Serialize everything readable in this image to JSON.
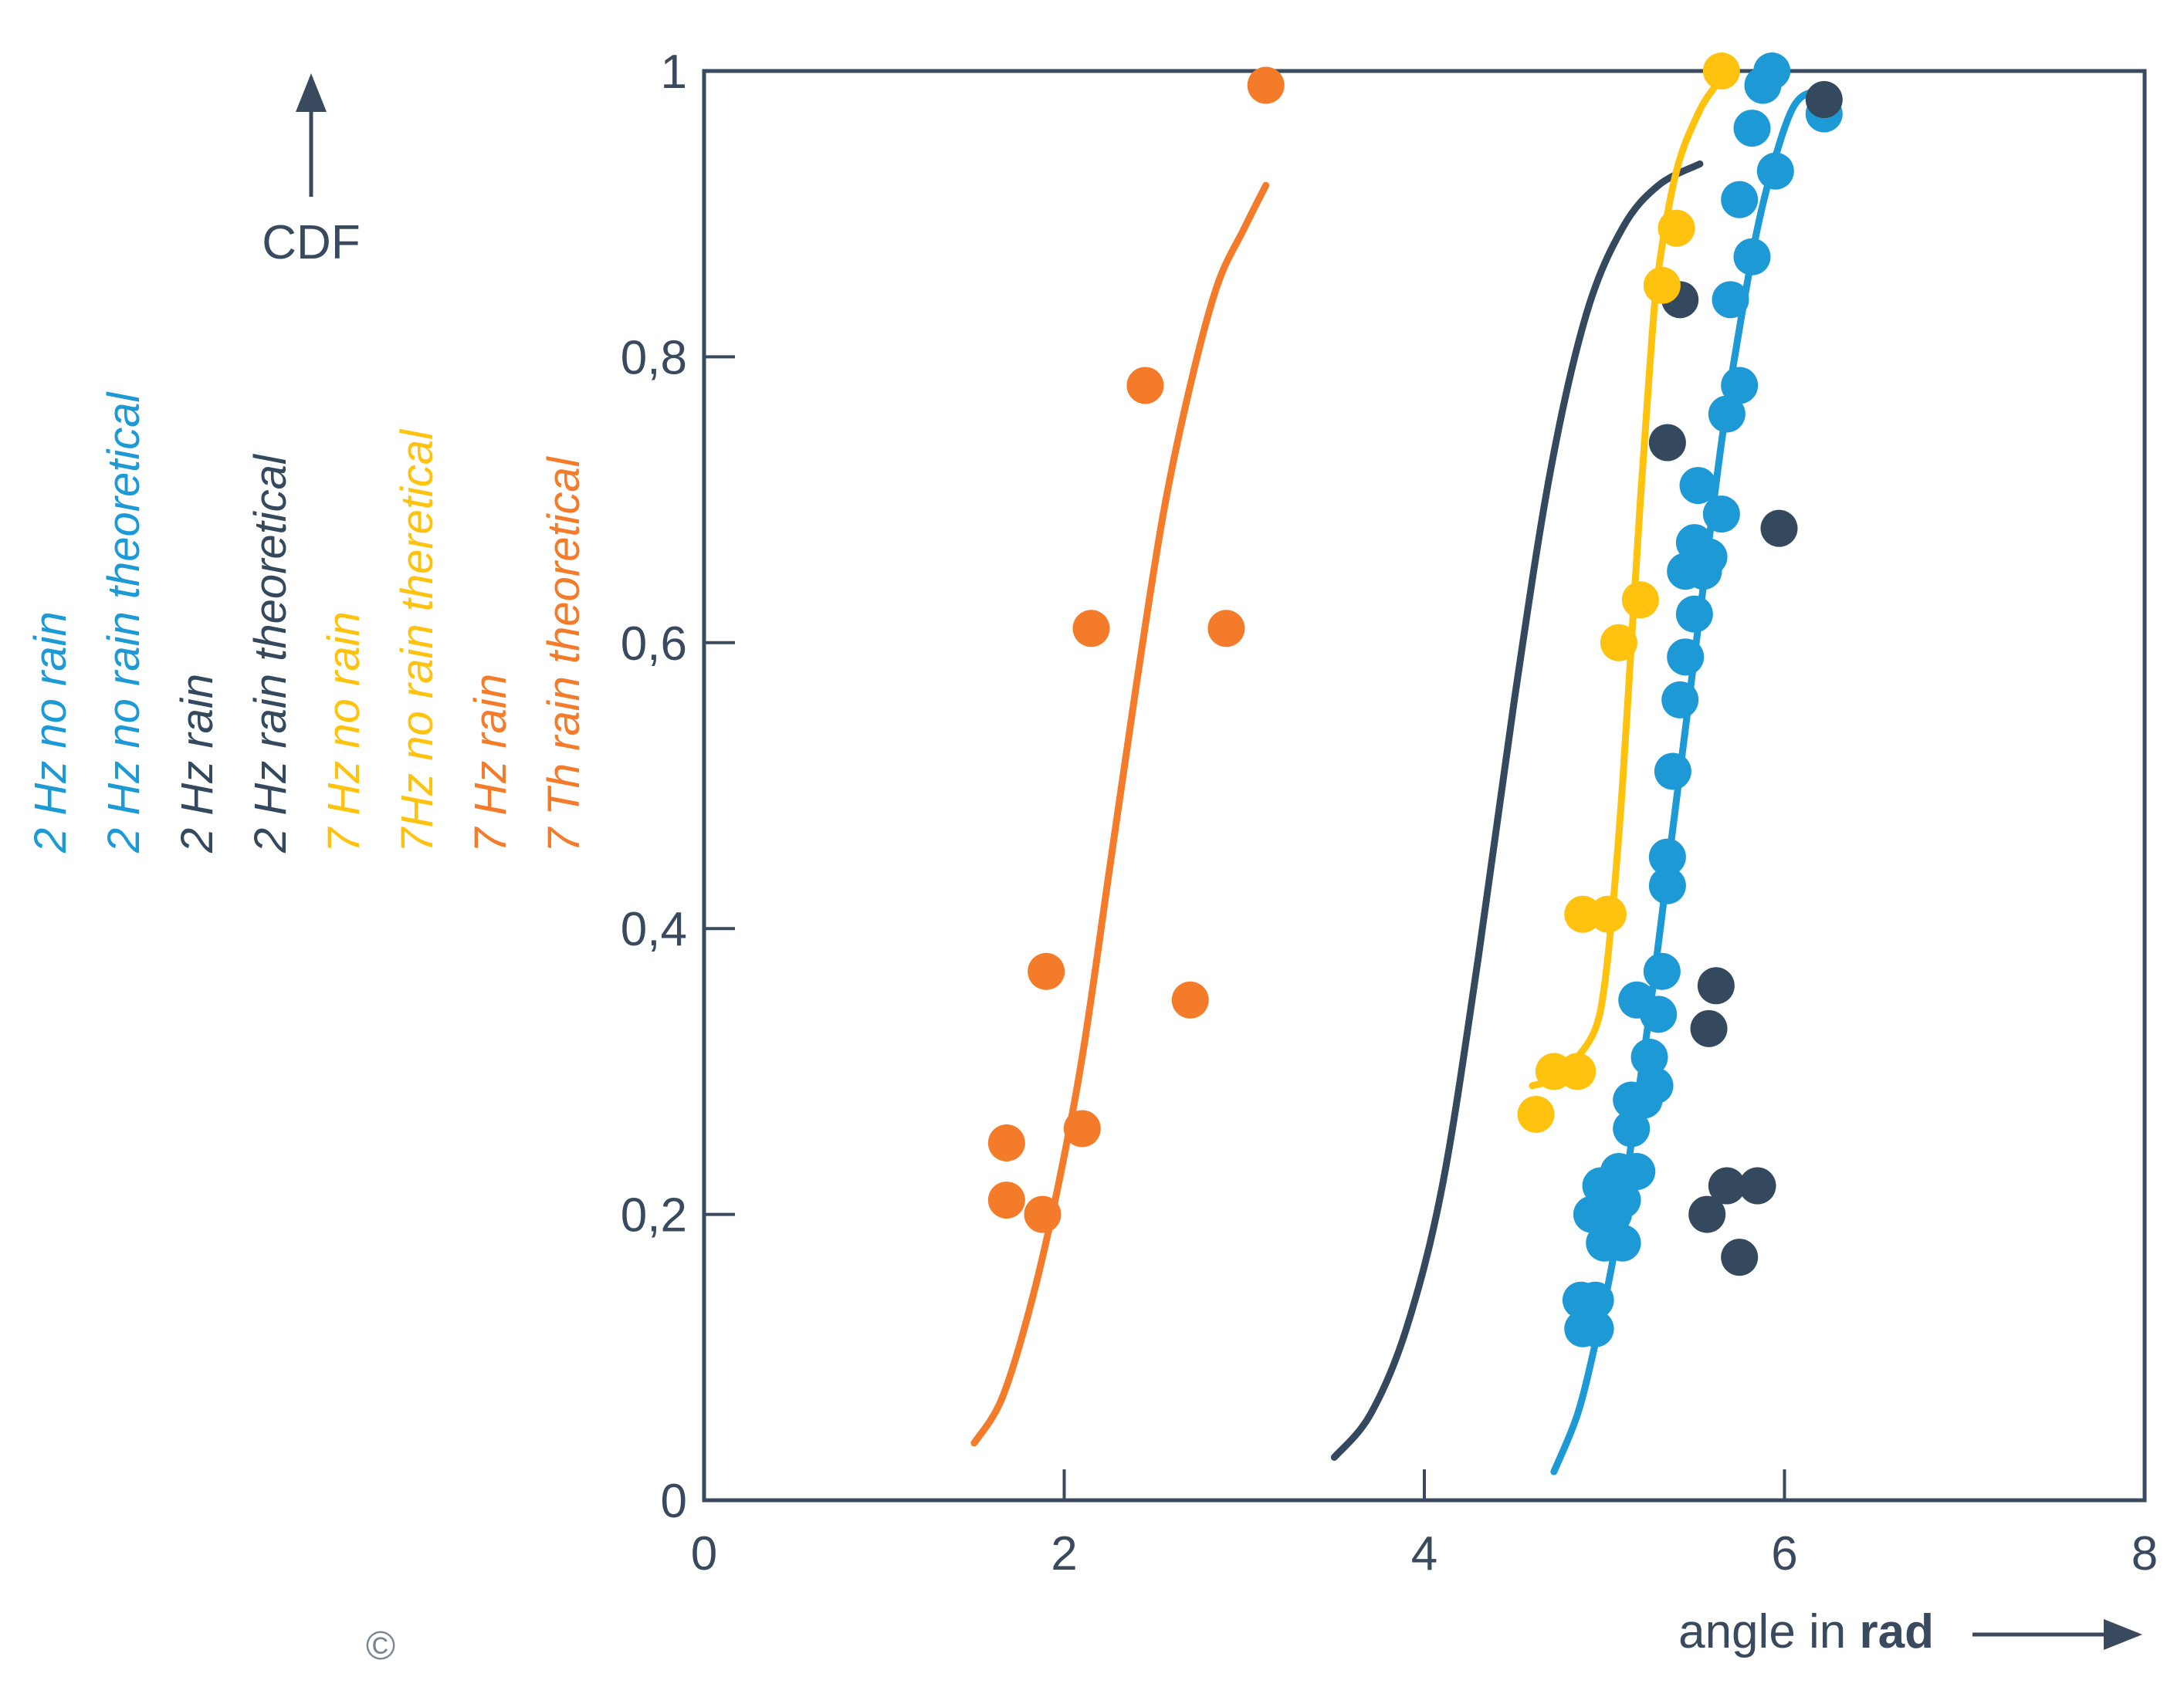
{
  "chart_data": {
    "type": "scatter",
    "title": "",
    "xlabel_prefix": "angle in ",
    "xlabel_bold": "rad",
    "ylabel": "CDF",
    "xlim": [
      0,
      8
    ],
    "ylim": [
      0,
      1
    ],
    "x_ticks": [
      0,
      2,
      4,
      6,
      8
    ],
    "x_tick_labels": [
      "0",
      "2",
      "4",
      "6",
      "8"
    ],
    "y_ticks": [
      0,
      0.2,
      0.4,
      0.6,
      0.8,
      1
    ],
    "y_tick_labels": [
      "0",
      "0,2",
      "0,4",
      "0,6",
      "0,8",
      "1"
    ],
    "grid": false,
    "legend_placement": "left, vertical",
    "copyright_symbol": "©",
    "colors": {
      "blue": "#1d9ad6",
      "navy": "#34495e",
      "yellow": "#ffc20e",
      "orange": "#f47b2a",
      "axis": "#3a4a5e"
    },
    "legend": [
      {
        "label": "2 Hz no rain",
        "color": "#1d9ad6"
      },
      {
        "label": "2 Hz no rain theoretical",
        "color": "#1d9ad6"
      },
      {
        "label": "2 Hz rain",
        "color": "#34495e"
      },
      {
        "label": "2 Hz rain theoretical",
        "color": "#34495e"
      },
      {
        "label": "7 Hz no rain",
        "color": "#ffc20e"
      },
      {
        "label": "7Hz no rain theretical",
        "color": "#ffc20e"
      },
      {
        "label": "7 Hz rain",
        "color": "#f47b2a"
      },
      {
        "label": "7 Th rain theoretical",
        "color": "#f47b2a"
      }
    ],
    "series": [
      {
        "name": "2 Hz no rain",
        "kind": "points",
        "color": "#1d9ad6",
        "points": [
          [
            4.88,
            0.12
          ],
          [
            4.95,
            0.12
          ],
          [
            4.87,
            0.14
          ],
          [
            4.95,
            0.14
          ],
          [
            4.93,
            0.2
          ],
          [
            5.05,
            0.2
          ],
          [
            5.0,
            0.18
          ],
          [
            5.1,
            0.18
          ],
          [
            5.02,
            0.21
          ],
          [
            5.1,
            0.21
          ],
          [
            4.98,
            0.22
          ],
          [
            5.08,
            0.23
          ],
          [
            5.18,
            0.23
          ],
          [
            5.15,
            0.26
          ],
          [
            5.15,
            0.28
          ],
          [
            5.22,
            0.28
          ],
          [
            5.28,
            0.29
          ],
          [
            5.25,
            0.31
          ],
          [
            5.18,
            0.35
          ],
          [
            5.3,
            0.34
          ],
          [
            5.32,
            0.37
          ],
          [
            5.35,
            0.43
          ],
          [
            5.35,
            0.45
          ],
          [
            5.38,
            0.51
          ],
          [
            5.42,
            0.56
          ],
          [
            5.45,
            0.59
          ],
          [
            5.5,
            0.62
          ],
          [
            5.45,
            0.65
          ],
          [
            5.55,
            0.65
          ],
          [
            5.5,
            0.67
          ],
          [
            5.58,
            0.66
          ],
          [
            5.52,
            0.71
          ],
          [
            5.65,
            0.69
          ],
          [
            5.68,
            0.76
          ],
          [
            5.75,
            0.78
          ],
          [
            5.7,
            0.84
          ],
          [
            5.82,
            0.87
          ],
          [
            5.75,
            0.91
          ],
          [
            5.95,
            0.93
          ],
          [
            5.82,
            0.96
          ],
          [
            5.88,
            0.99
          ],
          [
            5.93,
            1.0
          ],
          [
            6.22,
            0.97
          ]
        ]
      },
      {
        "name": "2 Hz no rain theoretical",
        "kind": "curve",
        "color": "#1d9ad6",
        "points": [
          [
            4.72,
            0.02
          ],
          [
            4.85,
            0.06
          ],
          [
            4.95,
            0.11
          ],
          [
            5.05,
            0.17
          ],
          [
            5.15,
            0.25
          ],
          [
            5.25,
            0.34
          ],
          [
            5.35,
            0.44
          ],
          [
            5.45,
            0.54
          ],
          [
            5.55,
            0.64
          ],
          [
            5.65,
            0.74
          ],
          [
            5.75,
            0.82
          ],
          [
            5.85,
            0.89
          ],
          [
            5.95,
            0.94
          ],
          [
            6.05,
            0.975
          ],
          [
            6.15,
            0.985
          ],
          [
            6.22,
            0.98
          ]
        ]
      },
      {
        "name": "2 Hz rain",
        "kind": "points",
        "color": "#34495e",
        "points": [
          [
            5.42,
            0.84
          ],
          [
            5.35,
            0.74
          ],
          [
            5.97,
            0.68
          ],
          [
            5.62,
            0.36
          ],
          [
            5.58,
            0.33
          ],
          [
            5.68,
            0.22
          ],
          [
            5.85,
            0.22
          ],
          [
            5.57,
            0.2
          ],
          [
            5.75,
            0.17
          ],
          [
            6.22,
            0.98
          ]
        ]
      },
      {
        "name": "2 Hz rain theoretical",
        "kind": "curve",
        "color": "#34495e",
        "points": [
          [
            3.5,
            0.03
          ],
          [
            3.7,
            0.06
          ],
          [
            3.9,
            0.12
          ],
          [
            4.1,
            0.22
          ],
          [
            4.3,
            0.38
          ],
          [
            4.5,
            0.56
          ],
          [
            4.7,
            0.72
          ],
          [
            4.9,
            0.83
          ],
          [
            5.1,
            0.89
          ],
          [
            5.3,
            0.92
          ],
          [
            5.53,
            0.935
          ]
        ]
      },
      {
        "name": "7 Hz no rain",
        "kind": "points",
        "color": "#ffc20e",
        "points": [
          [
            4.62,
            0.27
          ],
          [
            4.72,
            0.3
          ],
          [
            4.85,
            0.3
          ],
          [
            4.88,
            0.41
          ],
          [
            5.02,
            0.41
          ],
          [
            5.08,
            0.6
          ],
          [
            5.2,
            0.63
          ],
          [
            5.32,
            0.85
          ],
          [
            5.4,
            0.89
          ],
          [
            5.65,
            1.0
          ]
        ]
      },
      {
        "name": "7Hz no rain theretical",
        "kind": "curve",
        "color": "#ffc20e",
        "points": [
          [
            4.6,
            0.29
          ],
          [
            4.72,
            0.295
          ],
          [
            4.85,
            0.31
          ],
          [
            4.95,
            0.33
          ],
          [
            5.0,
            0.36
          ],
          [
            5.05,
            0.42
          ],
          [
            5.1,
            0.5
          ],
          [
            5.15,
            0.6
          ],
          [
            5.2,
            0.7
          ],
          [
            5.25,
            0.79
          ],
          [
            5.3,
            0.86
          ],
          [
            5.4,
            0.93
          ],
          [
            5.52,
            0.97
          ],
          [
            5.62,
            0.99
          ],
          [
            5.7,
            1.0
          ]
        ]
      },
      {
        "name": "7 Hz rain",
        "kind": "points",
        "color": "#f47b2a",
        "points": [
          [
            1.68,
            0.21
          ],
          [
            1.68,
            0.25
          ],
          [
            1.88,
            0.2
          ],
          [
            1.9,
            0.37
          ],
          [
            2.1,
            0.26
          ],
          [
            2.15,
            0.61
          ],
          [
            2.45,
            0.78
          ],
          [
            2.7,
            0.35
          ],
          [
            2.9,
            0.61
          ],
          [
            3.12,
            0.99
          ]
        ]
      },
      {
        "name": "7 Th rain theoretical",
        "kind": "curve",
        "color": "#f47b2a",
        "points": [
          [
            1.5,
            0.04
          ],
          [
            1.65,
            0.07
          ],
          [
            1.8,
            0.13
          ],
          [
            1.95,
            0.21
          ],
          [
            2.1,
            0.31
          ],
          [
            2.25,
            0.44
          ],
          [
            2.4,
            0.57
          ],
          [
            2.55,
            0.69
          ],
          [
            2.7,
            0.78
          ],
          [
            2.85,
            0.85
          ],
          [
            3.0,
            0.89
          ],
          [
            3.12,
            0.92
          ]
        ]
      }
    ]
  }
}
